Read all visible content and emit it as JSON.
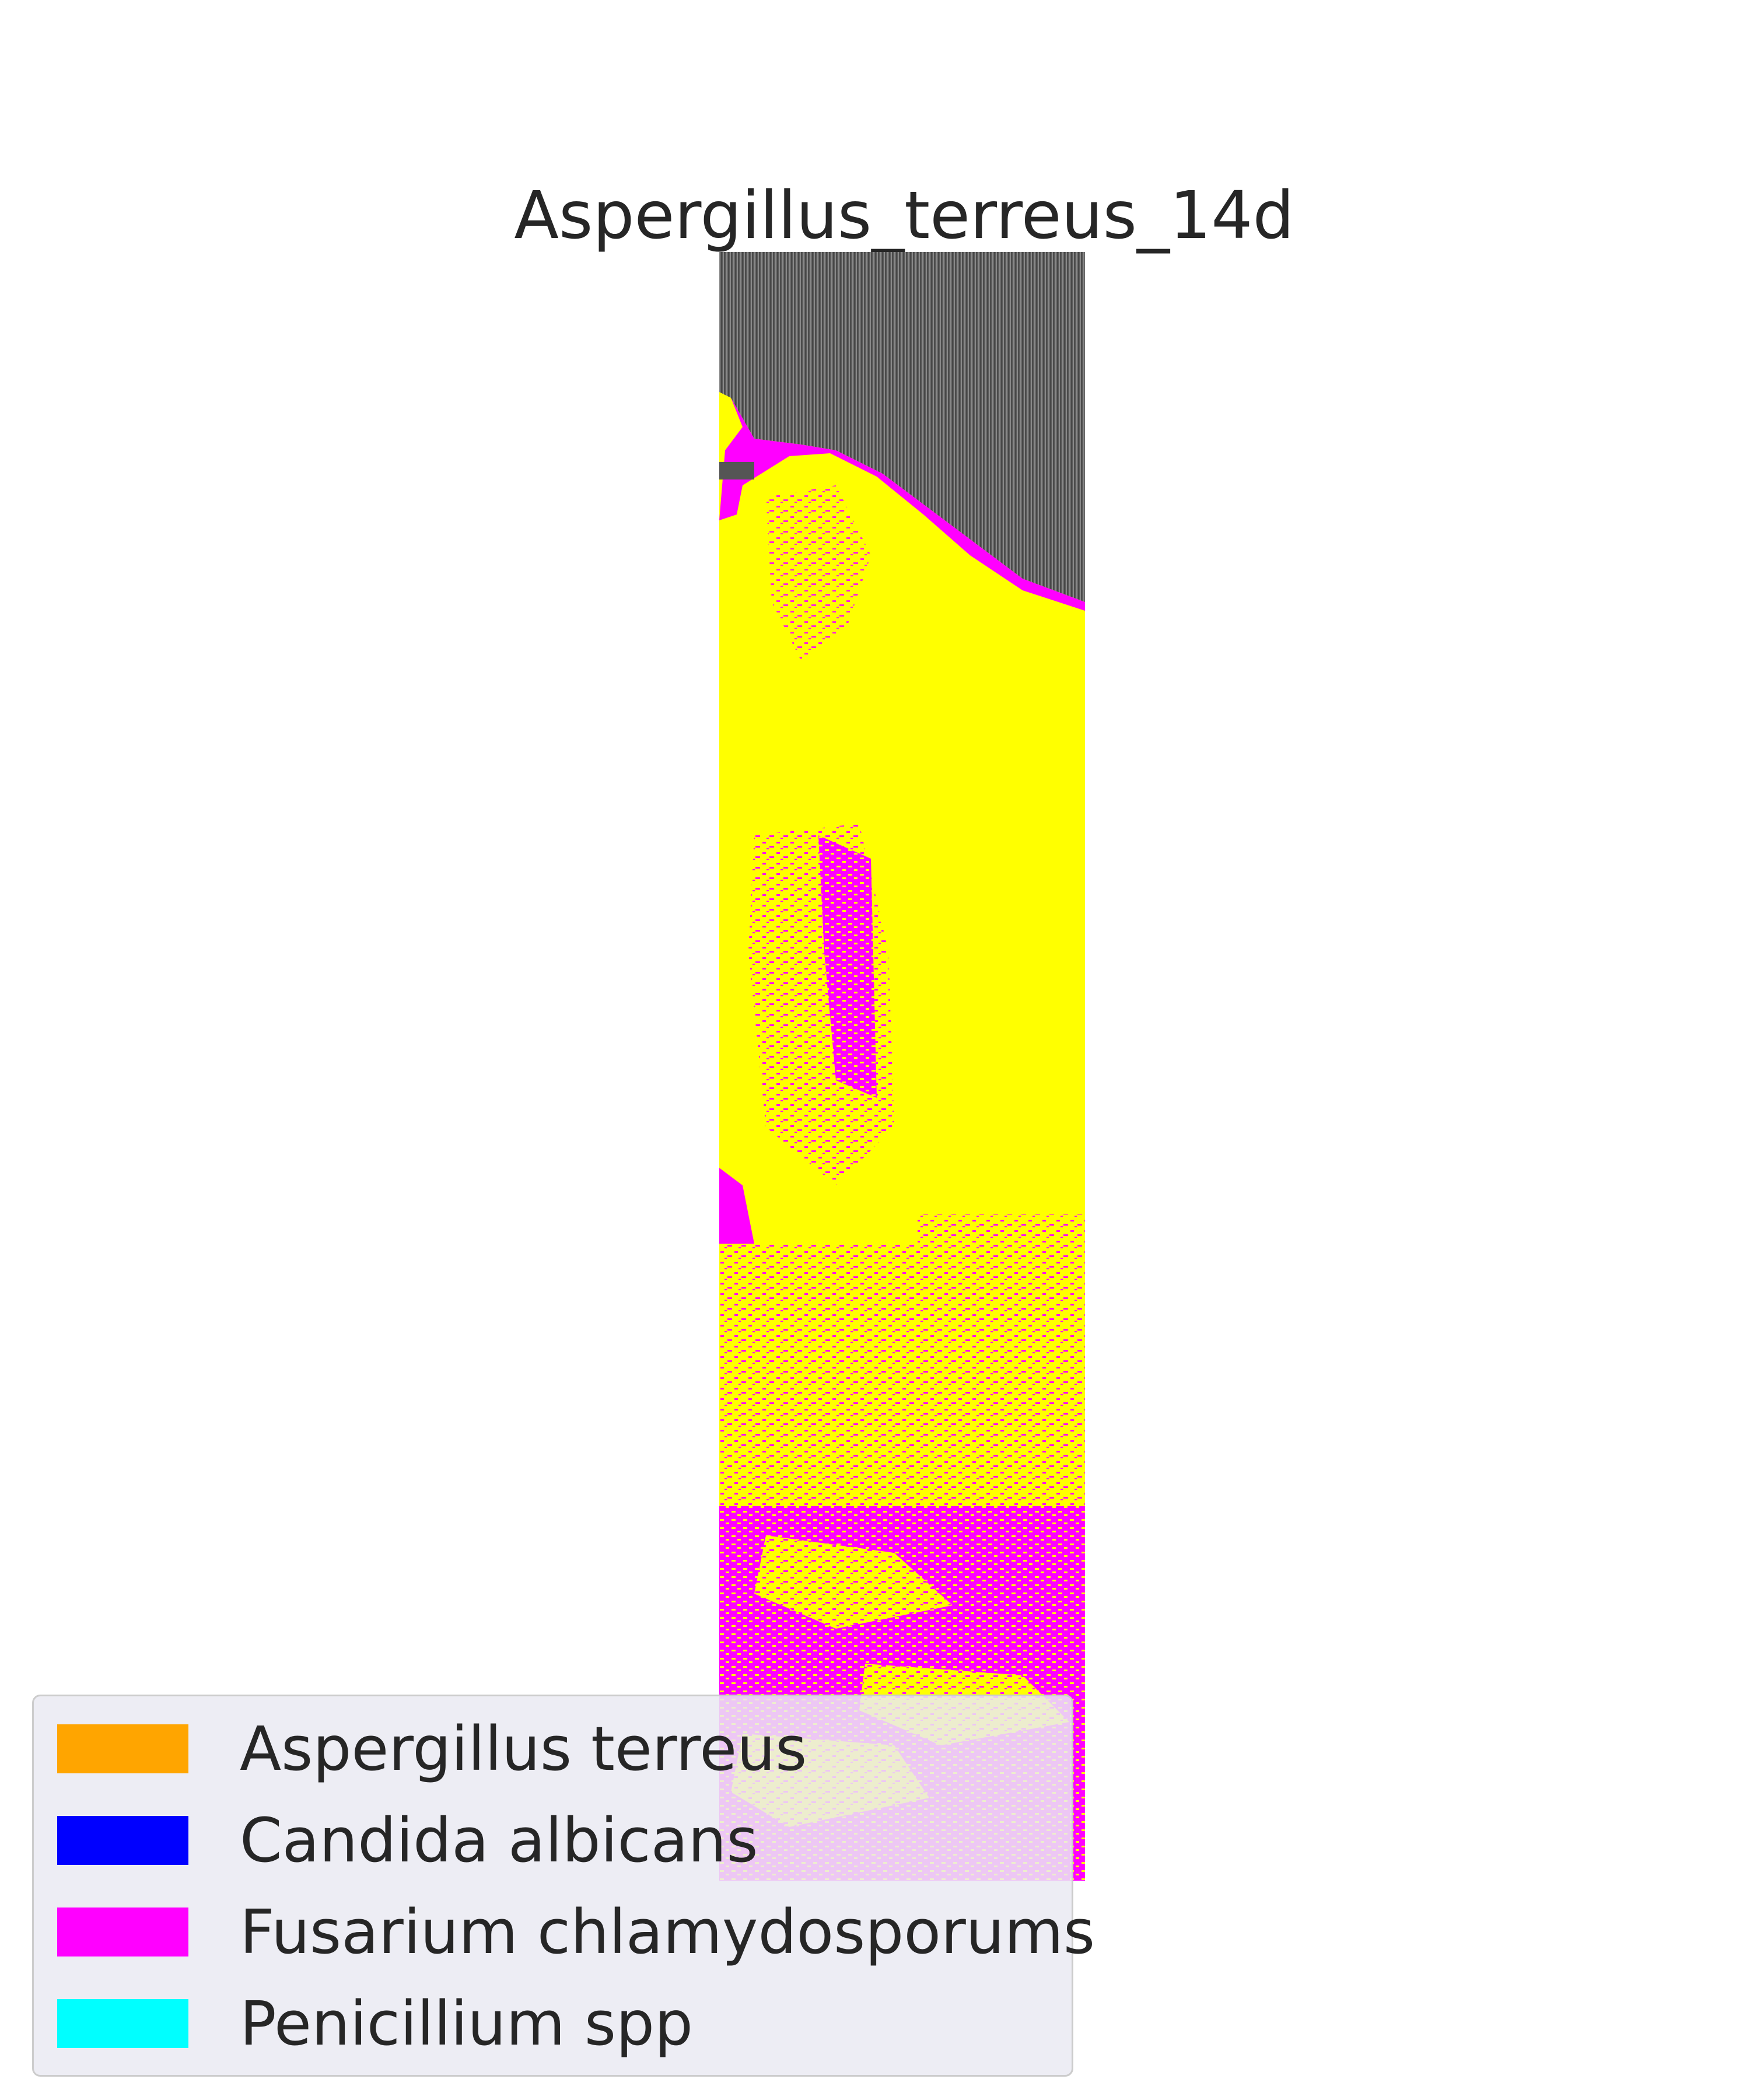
{
  "title": "Aspergillus_terreus_14d",
  "legend": {
    "items": [
      {
        "label": "Aspergillus terreus",
        "color": "#ffa500"
      },
      {
        "label": "Candida albicans",
        "color": "#0000ff"
      },
      {
        "label": "Fusarium chlamydosporums",
        "color": "#ff00ff"
      },
      {
        "label": "Penicillium spp",
        "color": "#00ffff"
      }
    ]
  },
  "image": {
    "background_colors": {
      "scan": "#555555",
      "yellow": "#ffff00",
      "magenta": "#ff00ff"
    }
  }
}
